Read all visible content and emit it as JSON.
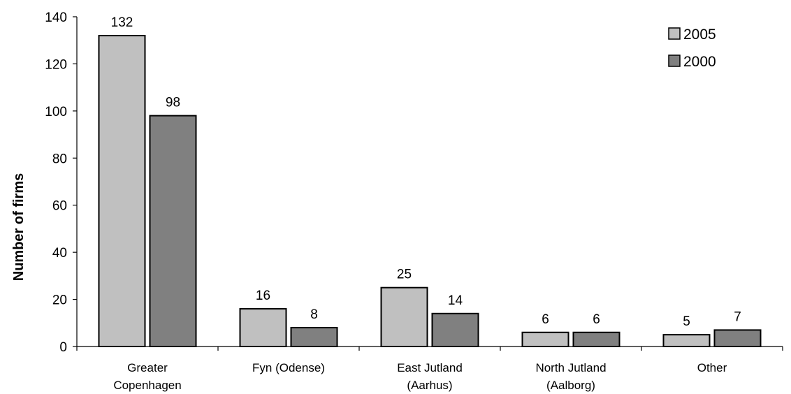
{
  "chart_data": {
    "type": "bar",
    "ylabel": "Number of firms",
    "xlabel": "",
    "ylim": [
      0,
      140
    ],
    "yticks": [
      0,
      20,
      40,
      60,
      80,
      100,
      120,
      140
    ],
    "categories": [
      [
        "Greater",
        "Copenhagen"
      ],
      [
        "Fyn (Odense)"
      ],
      [
        "East Jutland",
        "(Aarhus)"
      ],
      [
        "North Jutland",
        "(Aalborg)"
      ],
      [
        "Other"
      ]
    ],
    "series": [
      {
        "name": "2005",
        "color": "#c0c0c0",
        "values": [
          132,
          16,
          25,
          6,
          5
        ]
      },
      {
        "name": "2000",
        "color": "#808080",
        "values": [
          98,
          8,
          14,
          6,
          7
        ]
      }
    ],
    "legend_position": "top-right",
    "grid": false,
    "data_labels": true
  }
}
